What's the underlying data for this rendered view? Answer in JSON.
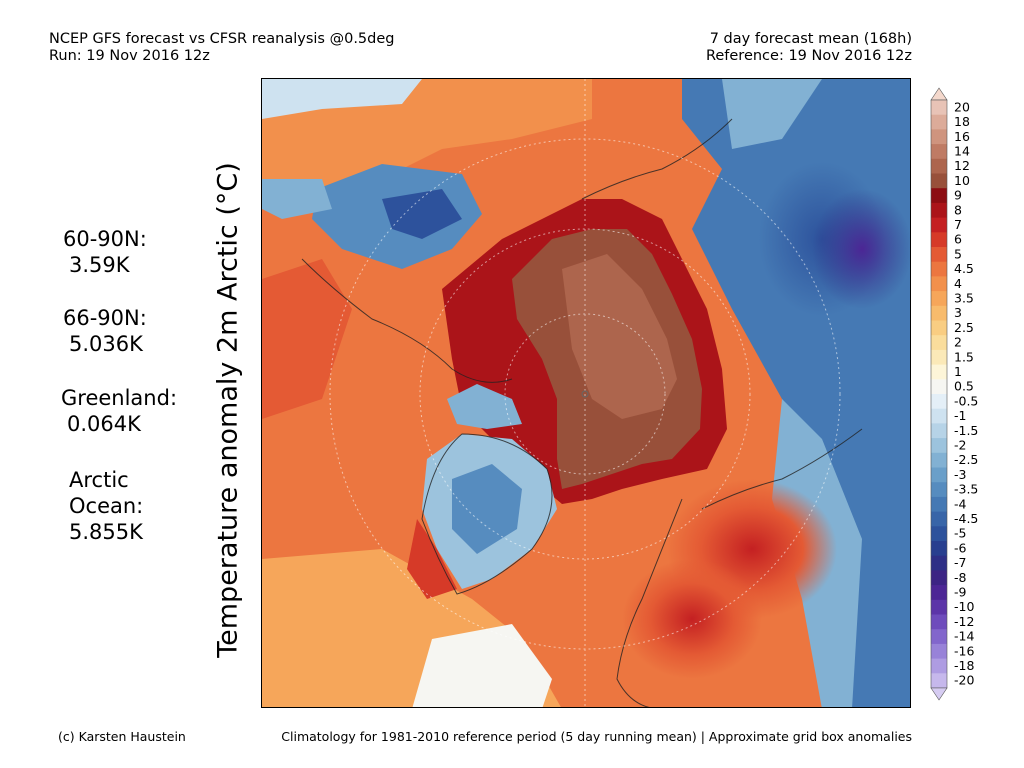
{
  "header": {
    "left_line1": "NCEP GFS forecast vs CFSR reanalysis @0.5deg",
    "left_line2": "Run: 19 Nov 2016 12z",
    "right_line1": "7 day forecast mean (168h)",
    "right_line2": "Reference: 19 Nov 2016 12z"
  },
  "y_label": "Temperature anomaly 2m Arctic (°C)",
  "stats": {
    "s6090": {
      "label": "60-90N:",
      "value": "3.59K"
    },
    "s6690": {
      "label": "66-90N:",
      "value": "5.036K"
    },
    "greenland": {
      "label": "Greenland:",
      "value": "0.064K"
    },
    "arctic_ocean": {
      "label1": "Arctic",
      "label2": "Ocean:",
      "value": "5.855K"
    }
  },
  "colorbar": {
    "labels": [
      "20",
      "18",
      "16",
      "14",
      "12",
      "10",
      "9",
      "8",
      "7",
      "6",
      "5",
      "4.5",
      "4",
      "3.5",
      "3",
      "2.5",
      "2",
      "1.5",
      "1",
      "0.5",
      "-0.5",
      "-1",
      "-1.5",
      "-2",
      "-2.5",
      "-3",
      "-3.5",
      "-4",
      "-4.5",
      "-5",
      "-6",
      "-7",
      "-8",
      "-9",
      "-10",
      "-12",
      "-14",
      "-16",
      "-18",
      "-20"
    ],
    "colors": [
      "#e8c3b6",
      "#dcab99",
      "#cf947e",
      "#bf7b64",
      "#ad654d",
      "#98503a",
      "#8c0d12",
      "#ab1419",
      "#c42022",
      "#d63a28",
      "#e45a34",
      "#ec7640",
      "#f2904c",
      "#f6a65a",
      "#f8bb6c",
      "#f9cd82",
      "#fadd9c",
      "#fbe9b8",
      "#fdf5d8",
      "#f6f6f2",
      "#e4eff7",
      "#cee2f0",
      "#b6d3e7",
      "#9cc3dd",
      "#82b1d3",
      "#6a9fc9",
      "#568cbf",
      "#4579b4",
      "#3865a8",
      "#2d529c",
      "#283f8f",
      "#2e2f86",
      "#3c2484",
      "#4c2695",
      "#5c35a8",
      "#6e4cbc",
      "#8266cc",
      "#9882d8",
      "#ae9ce2",
      "#c6b8ec"
    ]
  },
  "footer": {
    "left": "(c) Karsten Haustein",
    "right": "Climatology for 1981-2010 reference period (5 day running mean) | Approximate grid box anomalies"
  }
}
